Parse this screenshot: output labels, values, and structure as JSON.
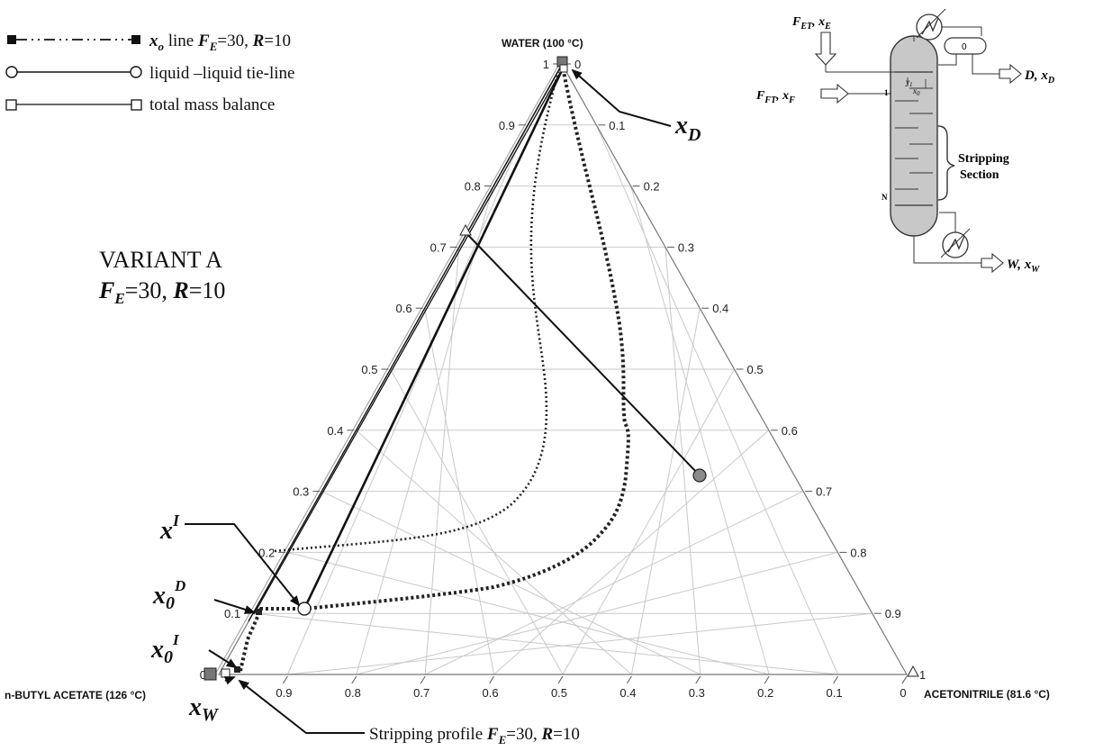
{
  "legend": [
    {
      "sym_html": "x",
      "sub": "o",
      "text1": " line ",
      "f": "F",
      "fsub": "E",
      "fval": "=30, ",
      "r": "R",
      "rval": "=10"
    },
    {
      "label": "liquid –liquid  tie-line"
    },
    {
      "label": "total mass balance"
    }
  ],
  "variant": {
    "title": "VARIANT A",
    "f": "F",
    "fsub": "E",
    "fval": "=30, ",
    "r": "R",
    "rval": "=10"
  },
  "vertices": {
    "top": "WATER (100 °C)",
    "left": "n-BUTYL ACETATE (126 °C)",
    "right": "ACETONITRILE (81.6 °C)"
  },
  "ticks": {
    "left_side": [
      "1",
      "0.9",
      "0.8",
      "0.7",
      "0.6",
      "0.5",
      "0.4",
      "0.3",
      "0.2",
      "0.1",
      "0"
    ],
    "right_side": [
      "0",
      "0.1",
      "0.2",
      "0.3",
      "0.4",
      "0.5",
      "0.6",
      "0.7",
      "0.8",
      "0.9",
      "1"
    ],
    "bottom": [
      "0.9",
      "0.8",
      "0.7",
      "0.6",
      "0.5",
      "0.4",
      "0.3",
      "0.2",
      "0.1",
      "0"
    ]
  },
  "points": {
    "xD": {
      "main": "x",
      "sub": "D"
    },
    "xI": {
      "main": "x",
      "sup": "I"
    },
    "x0D": {
      "main": "x",
      "sub": "0",
      "sup": "D"
    },
    "x0I": {
      "main": "x",
      "sub": "0",
      "sup": "I"
    },
    "xW": {
      "main": "x",
      "sub": "W"
    }
  },
  "stripping": {
    "text": "Stripping profile ",
    "f": "F",
    "fsub": "E",
    "fval": "=30, ",
    "r": "R",
    "rval": "=10"
  },
  "column": {
    "fet": "F",
    "fet_sub": "ET",
    "fet_x": ", x",
    "fet_xsub": "E",
    "fft": "F",
    "fft_sub": "FT",
    "fft_x": ", x",
    "fft_xsub": "F",
    "d": "D, x",
    "d_sub": "D",
    "w": "W, x",
    "w_sub": "W",
    "section": "Stripping Section",
    "top_stage": "1",
    "bottom_stage": "N",
    "drum": "0",
    "y1": "y",
    "y1_sub": "1",
    "x0": "x",
    "x0_sub": "0"
  }
}
